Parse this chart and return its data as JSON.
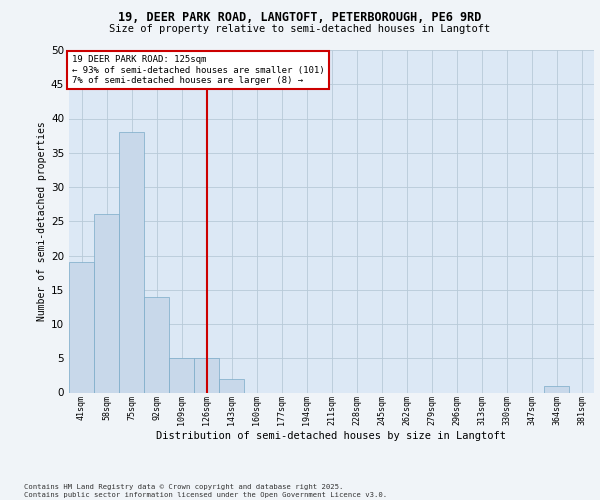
{
  "title_line1": "19, DEER PARK ROAD, LANGTOFT, PETERBOROUGH, PE6 9RD",
  "title_line2": "Size of property relative to semi-detached houses in Langtoft",
  "xlabel": "Distribution of semi-detached houses by size in Langtoft",
  "ylabel": "Number of semi-detached properties",
  "categories": [
    "41sqm",
    "58sqm",
    "75sqm",
    "92sqm",
    "109sqm",
    "126sqm",
    "143sqm",
    "160sqm",
    "177sqm",
    "194sqm",
    "211sqm",
    "228sqm",
    "245sqm",
    "262sqm",
    "279sqm",
    "296sqm",
    "313sqm",
    "330sqm",
    "347sqm",
    "364sqm",
    "381sqm"
  ],
  "values": [
    19,
    26,
    38,
    14,
    5,
    5,
    2,
    0,
    0,
    0,
    0,
    0,
    0,
    0,
    0,
    0,
    0,
    0,
    0,
    1,
    0
  ],
  "bar_color": "#c8d8ea",
  "bar_edge_color": "#7aaac8",
  "vline_index": 5,
  "vline_color": "#cc0000",
  "annotation_line1": "19 DEER PARK ROAD: 125sqm",
  "annotation_line2": "← 93% of semi-detached houses are smaller (101)",
  "annotation_line3": "7% of semi-detached houses are larger (8) →",
  "annotation_box_color": "#ffffff",
  "annotation_box_edge": "#cc0000",
  "ylim_max": 50,
  "yticks": [
    0,
    5,
    10,
    15,
    20,
    25,
    30,
    35,
    40,
    45,
    50
  ],
  "footer": "Contains HM Land Registry data © Crown copyright and database right 2025.\nContains public sector information licensed under the Open Government Licence v3.0.",
  "bg_color": "#dce8f5",
  "grid_color": "#b8cad8",
  "fig_bg_color": "#f0f4f8"
}
